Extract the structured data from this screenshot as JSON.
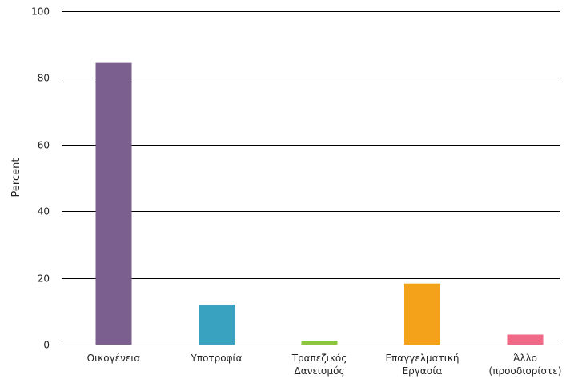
{
  "chart_data": {
    "type": "bar",
    "title": "",
    "xlabel": "",
    "ylabel": "Percent",
    "ylim": [
      0,
      100
    ],
    "yticks": [
      0,
      20,
      40,
      60,
      80,
      100
    ],
    "grid": true,
    "legend": "none",
    "categories": [
      [
        "Οικογένεια"
      ],
      [
        "Υποτροφία"
      ],
      [
        "Τραπεζικός",
        "Δανεισμός"
      ],
      [
        "Επαγγελματική",
        "Εργασία"
      ],
      [
        "Άλλο",
        "(προσδιορίστε)"
      ]
    ],
    "values": [
      84.5,
      12,
      1.2,
      18.3,
      3
    ],
    "colors": [
      "#7b5f8f",
      "#3aa2c1",
      "#8cc63f",
      "#f5a21b",
      "#ee6a86"
    ]
  }
}
